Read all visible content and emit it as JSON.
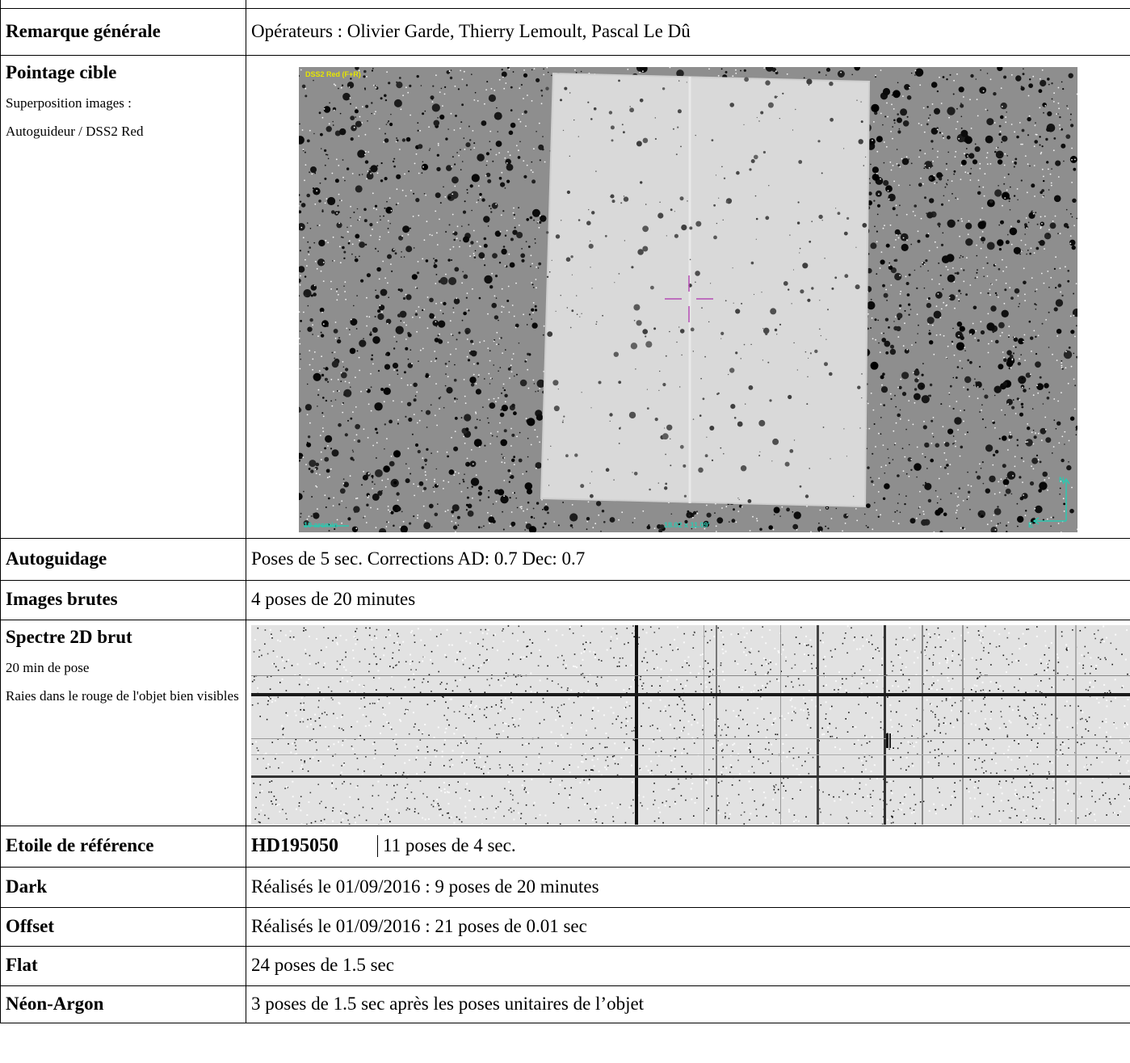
{
  "title_fragment": "",
  "rows": {
    "remarque": {
      "label": "Remarque générale",
      "value": "Opérateurs : Olivier Garde, Thierry Lemoult, Pascal Le Dû"
    },
    "pointage": {
      "label": "Pointage cible",
      "sub1": "Superposition images :",
      "sub2": "Autoguideur / DSS2 Red",
      "overlay_top": "DSS2 Red (F+R)",
      "overlay_scale": "10 arcmin",
      "overlay_coords": "18.02 x 11.09'",
      "overlay_north": "N",
      "overlay_east": "E"
    },
    "autoguidage": {
      "label": "Autoguidage",
      "value": "Poses de 5 sec. Corrections AD: 0.7 Dec: 0.7"
    },
    "images_brutes": {
      "label": "Images brutes",
      "value": "4 poses de 20 minutes"
    },
    "spectre": {
      "label": "Spectre 2D brut",
      "sub1": "20 min de pose",
      "sub2": "Raies dans le rouge de l'objet bien visibles"
    },
    "etoile": {
      "label": "Etoile de référence",
      "star": "HD195050",
      "value": "11 poses de 4 sec."
    },
    "dark": {
      "label": "Dark",
      "value": "Réalisés le 01/09/2016 : 9 poses de 20 minutes"
    },
    "offset": {
      "label": "Offset",
      "value": "Réalisés le 01/09/2016 : 21 poses de 0.01 sec"
    },
    "flat": {
      "label": "Flat",
      "value": "24 poses de 1.5 sec"
    },
    "neon": {
      "label": "Néon-Argon",
      "value": "3 poses de 1.5 sec après les poses unitaires de l’objet"
    }
  }
}
